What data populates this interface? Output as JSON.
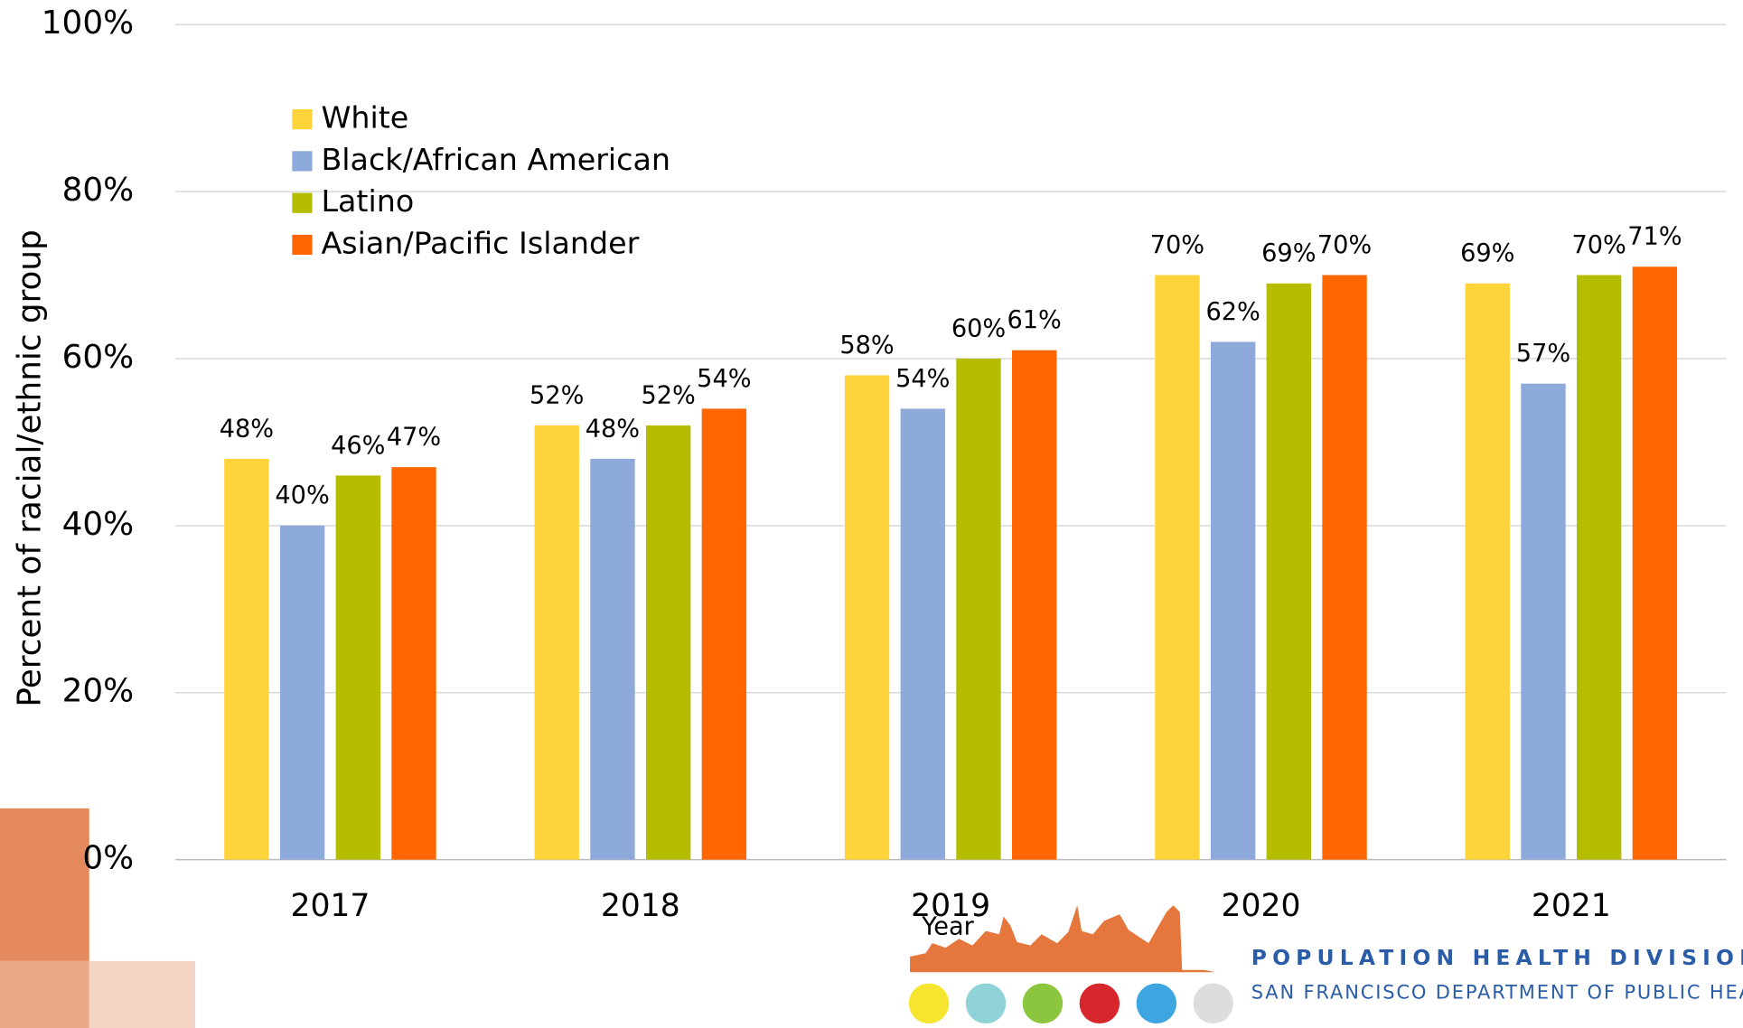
{
  "chart_data": {
    "type": "bar",
    "y_label": "Percent of racial/ethnic group",
    "x_label": "Year",
    "categories": [
      "2017",
      "2018",
      "2019",
      "2020",
      "2021"
    ],
    "series": [
      {
        "name": "White",
        "color": "#FFD43B",
        "values": [
          48,
          52,
          58,
          70,
          69
        ],
        "value_labels": [
          "48%",
          "52%",
          "58%",
          "70%",
          "69%"
        ]
      },
      {
        "name": "Black/African American",
        "color": "#8EAADB",
        "values": [
          40,
          48,
          54,
          62,
          57
        ],
        "value_labels": [
          "40%",
          "48%",
          "54%",
          "62%",
          "57%"
        ]
      },
      {
        "name": "Latino",
        "color": "#B5BD00",
        "values": [
          46,
          52,
          60,
          69,
          70
        ],
        "value_labels": [
          "46%",
          "52%",
          "60%",
          "69%",
          "70%"
        ]
      },
      {
        "name": "Asian/Pacific Islander",
        "color": "#FF6600",
        "values": [
          47,
          54,
          61,
          70,
          71
        ],
        "value_labels": [
          "47%",
          "54%",
          "61%",
          "70%",
          "71%"
        ]
      }
    ],
    "ylim": [
      0,
      100
    ],
    "yticks": [
      {
        "value": 0,
        "label": "0%"
      },
      {
        "value": 20,
        "label": "20%"
      },
      {
        "value": 40,
        "label": "40%"
      },
      {
        "value": 60,
        "label": "60%"
      },
      {
        "value": 80,
        "label": "80%"
      },
      {
        "value": 100,
        "label": "100%"
      }
    ],
    "grid": true,
    "legend": "upper left"
  },
  "footer": {
    "division": "POPULATION HEALTH DIVISION",
    "department": "SAN FRANCISCO DEPARTMENT OF PUBLIC HEALTH"
  }
}
